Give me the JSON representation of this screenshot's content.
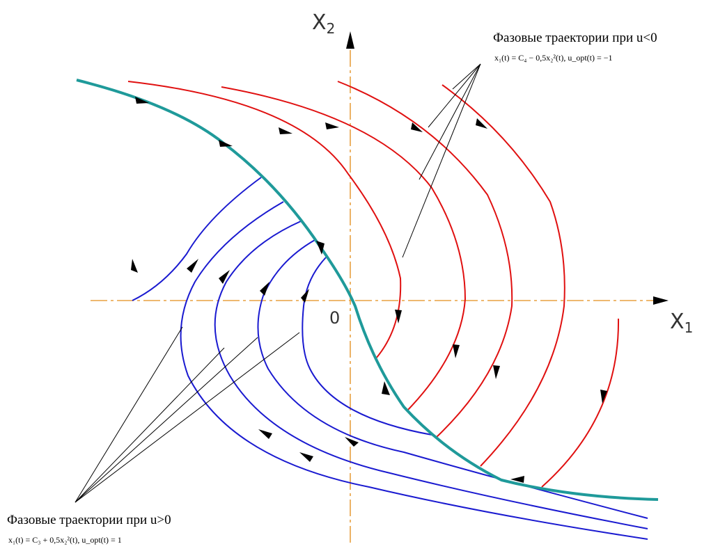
{
  "axes": {
    "x_label": "X",
    "x_sub": "1",
    "y_label": "X",
    "y_sub": "2",
    "origin": "0"
  },
  "annotation_negative": {
    "title": "Фазовые траектории при u<0",
    "formula": "x₁(t) = C₄ − 0,5x₂²(t), u_opt(t) = −1"
  },
  "annotation_positive": {
    "title": "Фазовые траектории при u>0",
    "formula": "x₁(t) = C₃ + 0,5x₂²(t), u_opt(t) = 1"
  },
  "colors": {
    "negative_trajectories": "#e01010",
    "positive_trajectories": "#1a1ad0",
    "switching_curve": "#1f9a9a",
    "axes": "#e8a040"
  }
}
